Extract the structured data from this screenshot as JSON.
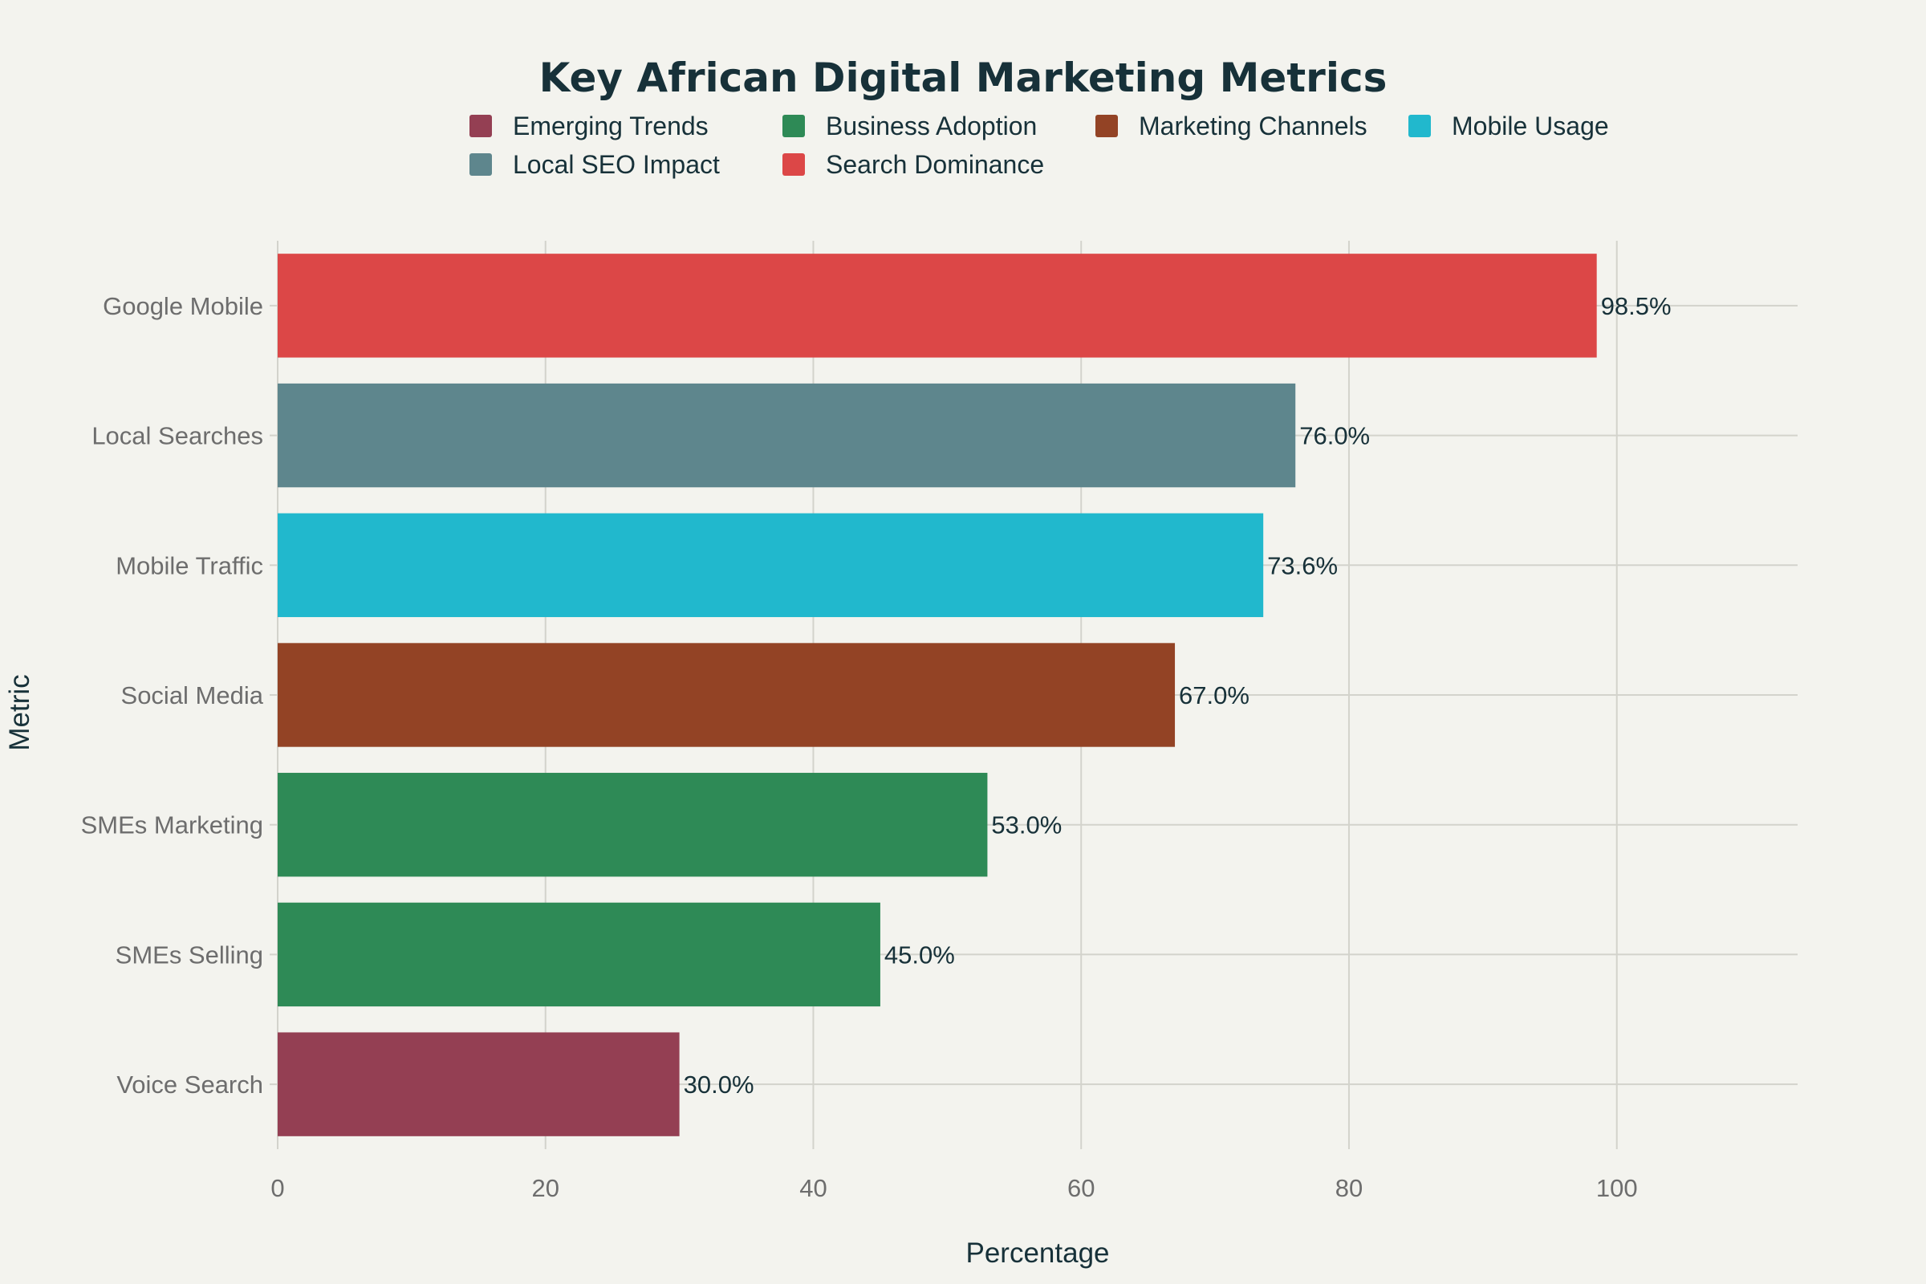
{
  "chart_data": {
    "type": "bar",
    "orientation": "horizontal",
    "title": "Key African Digital Marketing Metrics",
    "xlabel": "Percentage",
    "ylabel": "Metric",
    "xlim": [
      0,
      113.5
    ],
    "xticks": [
      0,
      20,
      40,
      60,
      80,
      100
    ],
    "grid": true,
    "legend_position": "top",
    "legend": [
      {
        "name": "Emerging Trends",
        "color": "#943f53"
      },
      {
        "name": "Business Adoption",
        "color": "#2e8a56"
      },
      {
        "name": "Marketing Channels",
        "color": "#934325"
      },
      {
        "name": "Mobile Usage",
        "color": "#21b8cd"
      },
      {
        "name": "Local SEO Impact",
        "color": "#5e868d"
      },
      {
        "name": "Search Dominance",
        "color": "#dc4747"
      }
    ],
    "bars": [
      {
        "category": "Google Mobile",
        "value": 98.5,
        "label": "98.5%",
        "group": "Search Dominance",
        "color": "#dc4747"
      },
      {
        "category": "Local Searches",
        "value": 76.0,
        "label": "76.0%",
        "group": "Local SEO Impact",
        "color": "#5e868d"
      },
      {
        "category": "Mobile Traffic",
        "value": 73.6,
        "label": "73.6%",
        "group": "Mobile Usage",
        "color": "#21b8cd"
      },
      {
        "category": "Social Media",
        "value": 67.0,
        "label": "67.0%",
        "group": "Marketing Channels",
        "color": "#934325"
      },
      {
        "category": "SMEs Marketing",
        "value": 53.0,
        "label": "53.0%",
        "group": "Business Adoption",
        "color": "#2e8a56"
      },
      {
        "category": "SMEs Selling",
        "value": 45.0,
        "label": "45.0%",
        "group": "Business Adoption",
        "color": "#2e8a56"
      },
      {
        "category": "Voice Search",
        "value": 30.0,
        "label": "30.0%",
        "group": "Emerging Trends",
        "color": "#943f53"
      }
    ]
  }
}
